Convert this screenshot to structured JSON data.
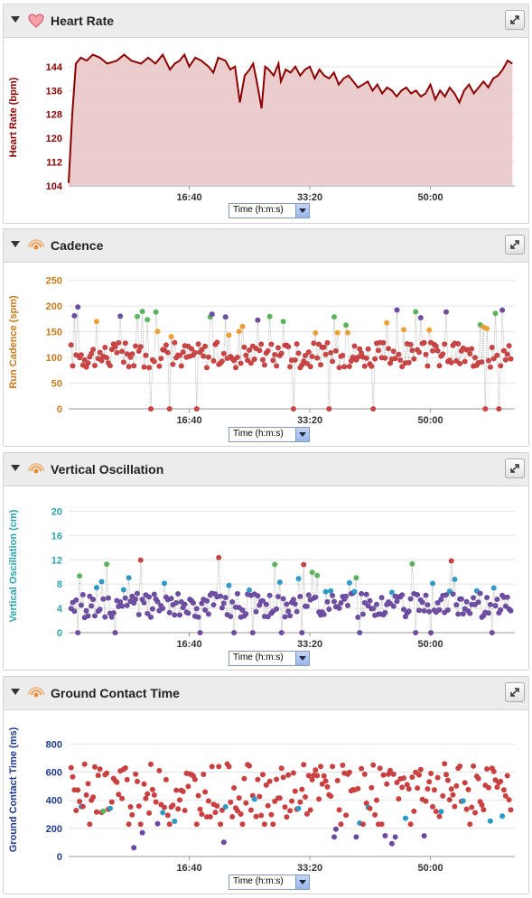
{
  "panels": [
    {
      "title": "Heart Rate",
      "icon": "heart-icon"
    },
    {
      "title": "Cadence",
      "icon": "run-sensor-icon"
    },
    {
      "title": "Vertical Oscillation",
      "icon": "run-sensor-icon"
    },
    {
      "title": "Ground Contact Time",
      "icon": "run-sensor-icon"
    }
  ],
  "axis_selector": "Time (h:m:s)",
  "colors": {
    "hr_line": "#8b0000",
    "hr_fill": "#e8c4c4",
    "red": "#c94040",
    "orange": "#f0a030",
    "green": "#5ab55a",
    "blue": "#2a9ac9",
    "purple": "#6a4aa0",
    "cadence_axis": "#c87a1e",
    "vo_axis": "#2aa3b0",
    "gct_axis": "#1e3a8c",
    "hr_axis": "#8b0000"
  },
  "chart_data": [
    {
      "type": "area",
      "ylabel": "Heart Rate (bpm)",
      "x_tick_labels": [
        "16:40",
        "33:20",
        "50:00"
      ],
      "x_ticks_s": [
        1000,
        2000,
        3000
      ],
      "x_range_s": [
        0,
        3700
      ],
      "ylim": [
        104,
        150
      ],
      "y_ticks": [
        104,
        112,
        120,
        128,
        136,
        144
      ],
      "x_s": [
        0,
        30,
        60,
        100,
        150,
        200,
        260,
        320,
        400,
        460,
        520,
        600,
        660,
        720,
        780,
        840,
        880,
        920,
        960,
        1000,
        1050,
        1100,
        1160,
        1200,
        1240,
        1300,
        1340,
        1380,
        1420,
        1460,
        1500,
        1530,
        1560,
        1600,
        1630,
        1660,
        1700,
        1740,
        1760,
        1800,
        1840,
        1880,
        1920,
        1960,
        2000,
        2040,
        2080,
        2120,
        2160,
        2200,
        2240,
        2280,
        2320,
        2360,
        2400,
        2440,
        2480,
        2520,
        2560,
        2600,
        2640,
        2680,
        2720,
        2760,
        2800,
        2840,
        2880,
        2920,
        2960,
        3000,
        3040,
        3080,
        3120,
        3160,
        3200,
        3240,
        3280,
        3320,
        3360,
        3400,
        3440,
        3480,
        3520,
        3560,
        3600,
        3640,
        3680
      ],
      "values": [
        105,
        128,
        145,
        147,
        146,
        148,
        147,
        145,
        146,
        148,
        146,
        145,
        147,
        145,
        148,
        143,
        145,
        146,
        148,
        144,
        147,
        146,
        144,
        142,
        147,
        146,
        143,
        144,
        132,
        141,
        143,
        145,
        139,
        130,
        144,
        143,
        141,
        145,
        139,
        143,
        142,
        144,
        141,
        143,
        144,
        140,
        143,
        141,
        140,
        142,
        138,
        140,
        141,
        139,
        137,
        138,
        139,
        136,
        138,
        135,
        137,
        136,
        134,
        136,
        137,
        135,
        136,
        134,
        135,
        138,
        133,
        136,
        134,
        137,
        135,
        132,
        136,
        138,
        135,
        137,
        139,
        137,
        140,
        141,
        143,
        146,
        145
      ]
    },
    {
      "type": "scatter",
      "ylabel": "Run Cadence (spm)",
      "x_tick_labels": [
        "16:40",
        "33:20",
        "50:00"
      ],
      "x_ticks_s": [
        1000,
        2000,
        3000
      ],
      "x_range_s": [
        0,
        3700
      ],
      "ylim": [
        0,
        260
      ],
      "y_ticks": [
        0,
        50,
        100,
        150,
        200,
        250
      ]
    },
    {
      "type": "scatter",
      "ylabel": "Vertical Oscillation (cm)",
      "x_tick_labels": [
        "16:40",
        "33:20",
        "50:00"
      ],
      "x_ticks_s": [
        1000,
        2000,
        3000
      ],
      "x_range_s": [
        0,
        3700
      ],
      "ylim": [
        0,
        22
      ],
      "y_ticks": [
        0,
        4,
        8,
        12,
        16,
        20
      ]
    },
    {
      "type": "scatter",
      "ylabel": "Ground Contact Time (ms)",
      "x_tick_labels": [
        "16:40",
        "33:20",
        "50:00"
      ],
      "x_ticks_s": [
        1000,
        2000,
        3000
      ],
      "x_range_s": [
        0,
        3700
      ],
      "ylim": [
        0,
        950
      ],
      "y_ticks": [
        0,
        200,
        400,
        600,
        800
      ]
    }
  ]
}
